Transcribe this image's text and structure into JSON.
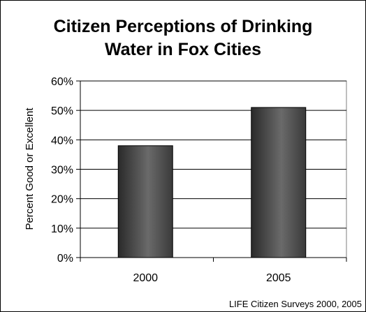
{
  "chart_data": {
    "type": "bar",
    "title_lines": [
      "Citizen Perceptions of Drinking",
      "Water in Fox Cities"
    ],
    "categories": [
      "2000",
      "2005"
    ],
    "values": [
      38,
      51
    ],
    "ylabel": "Percent Good or Excellent",
    "xlabel": "",
    "ylim": [
      0,
      60
    ],
    "yticks": [
      0,
      10,
      20,
      30,
      40,
      50,
      60
    ],
    "ytick_labels": [
      "0%",
      "10%",
      "20%",
      "30%",
      "40%",
      "50%",
      "60%"
    ],
    "grid": true,
    "legend": "none",
    "source": "LIFE Citizen Surveys 2000, 2005",
    "colors": {
      "bar_dark": "#2e2e2e",
      "bar_light": "#6a6a6a",
      "grid": "#000000"
    }
  }
}
